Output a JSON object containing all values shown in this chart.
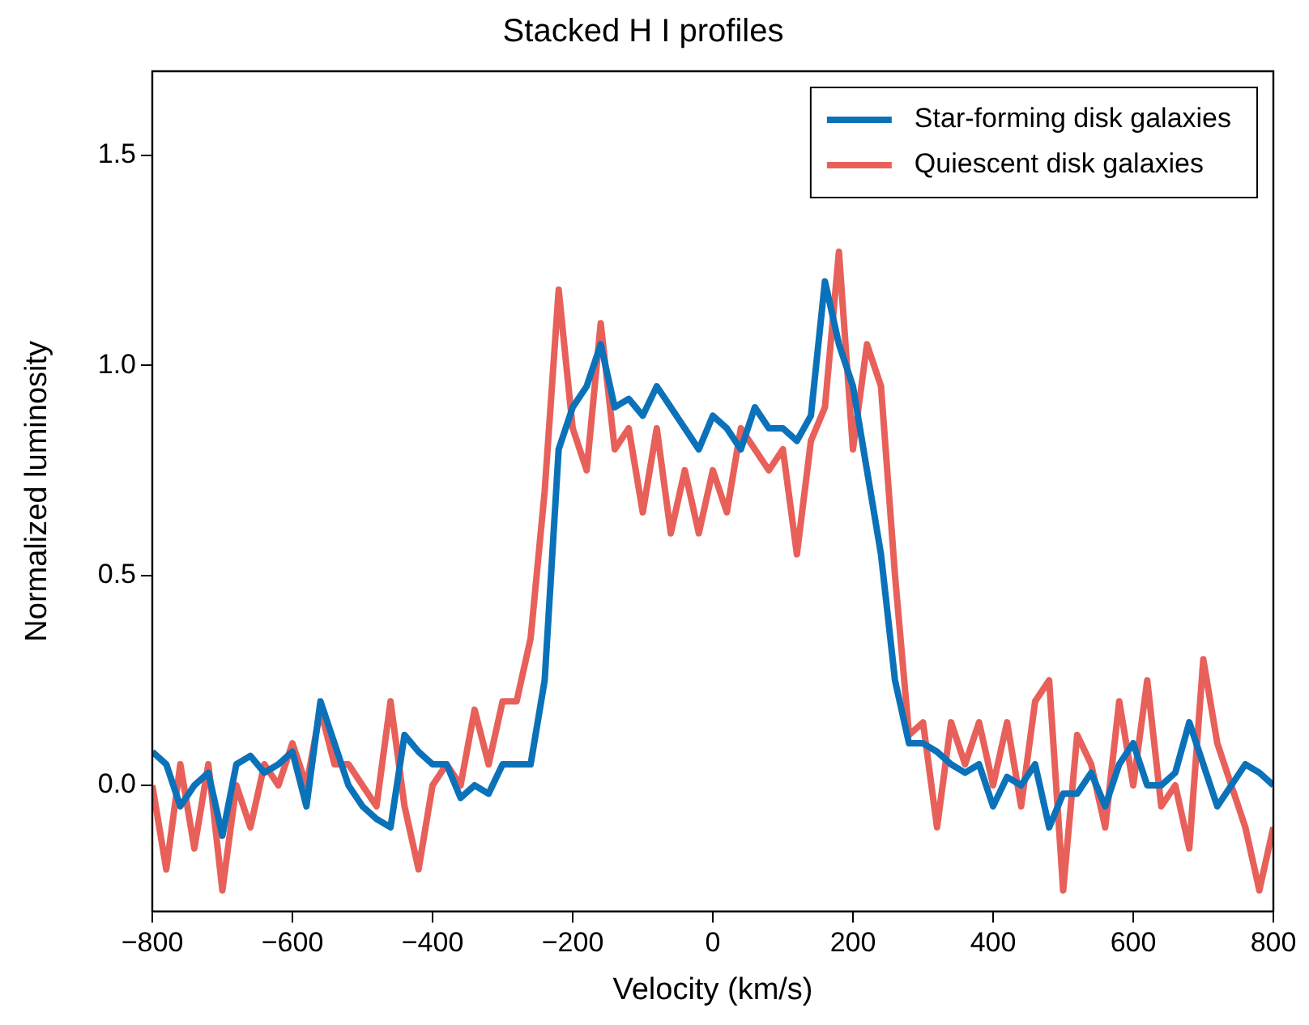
{
  "chart_data": {
    "type": "line",
    "title": "Stacked H I profiles",
    "xlabel": "Velocity (km/s)",
    "ylabel": "Normalized luminosity",
    "x": [
      -800,
      -780,
      -760,
      -740,
      -720,
      -700,
      -680,
      -660,
      -640,
      -620,
      -600,
      -580,
      -560,
      -540,
      -520,
      -500,
      -480,
      -460,
      -440,
      -420,
      -400,
      -380,
      -360,
      -340,
      -320,
      -300,
      -280,
      -260,
      -240,
      -220,
      -200,
      -180,
      -160,
      -140,
      -120,
      -100,
      -80,
      -60,
      -40,
      -20,
      0,
      20,
      40,
      60,
      80,
      100,
      120,
      140,
      160,
      180,
      200,
      220,
      240,
      260,
      280,
      300,
      320,
      340,
      360,
      380,
      400,
      420,
      440,
      460,
      480,
      500,
      520,
      540,
      560,
      580,
      600,
      620,
      640,
      660,
      680,
      700,
      720,
      740,
      760,
      780,
      800
    ],
    "series": [
      {
        "name": "Star-forming disk galaxies",
        "color": "#0b72ba",
        "values": [
          0.08,
          0.05,
          -0.05,
          0.0,
          0.03,
          -0.12,
          0.05,
          0.07,
          0.03,
          0.05,
          0.08,
          -0.05,
          0.2,
          0.1,
          0.0,
          -0.05,
          -0.08,
          -0.1,
          0.12,
          0.08,
          0.05,
          0.05,
          -0.03,
          0.0,
          -0.02,
          0.05,
          0.05,
          0.05,
          0.25,
          0.8,
          0.9,
          0.95,
          1.05,
          0.9,
          0.92,
          0.88,
          0.95,
          0.9,
          0.85,
          0.8,
          0.88,
          0.85,
          0.8,
          0.9,
          0.85,
          0.85,
          0.82,
          0.88,
          1.2,
          1.05,
          0.95,
          0.75,
          0.55,
          0.25,
          0.1,
          0.1,
          0.08,
          0.05,
          0.03,
          0.05,
          -0.05,
          0.02,
          0.0,
          0.05,
          -0.1,
          -0.02,
          -0.02,
          0.03,
          -0.05,
          0.05,
          0.1,
          0.0,
          0.0,
          0.03,
          0.15,
          0.05,
          -0.05,
          0.0,
          0.05,
          0.03,
          0.0
        ]
      },
      {
        "name": "Quiescent disk galaxies",
        "color": "#e8605a",
        "values": [
          0.0,
          -0.2,
          0.05,
          -0.15,
          0.05,
          -0.25,
          0.0,
          -0.1,
          0.05,
          0.0,
          0.1,
          0.0,
          0.18,
          0.05,
          0.05,
          0.0,
          -0.05,
          0.2,
          -0.05,
          -0.2,
          0.0,
          0.05,
          0.0,
          0.18,
          0.05,
          0.2,
          0.2,
          0.35,
          0.7,
          1.18,
          0.85,
          0.75,
          1.1,
          0.8,
          0.85,
          0.65,
          0.85,
          0.6,
          0.75,
          0.6,
          0.75,
          0.65,
          0.85,
          0.8,
          0.75,
          0.8,
          0.55,
          0.82,
          0.9,
          1.27,
          0.8,
          1.05,
          0.95,
          0.5,
          0.12,
          0.15,
          -0.1,
          0.15,
          0.05,
          0.15,
          0.0,
          0.15,
          -0.05,
          0.2,
          0.25,
          -0.25,
          0.12,
          0.05,
          -0.1,
          0.2,
          0.0,
          0.25,
          -0.05,
          0.0,
          -0.15,
          0.3,
          0.1,
          0.0,
          -0.1,
          -0.25,
          -0.1
        ]
      }
    ],
    "xlim": [
      -800,
      800
    ],
    "ylim": [
      -0.3,
      1.7
    ],
    "xticks": [
      {
        "value": -800,
        "label": "−800"
      },
      {
        "value": -600,
        "label": "−600"
      },
      {
        "value": -400,
        "label": "−400"
      },
      {
        "value": -200,
        "label": "−200"
      },
      0,
      200,
      400,
      600,
      800
    ],
    "yticks": [
      {
        "value": 0,
        "label": "0.0"
      },
      {
        "value": 0.5,
        "label": "0.5"
      },
      {
        "value": 1,
        "label": "1.0"
      },
      {
        "value": 1.5,
        "label": "1.5"
      }
    ],
    "grid": false,
    "legend": "top right",
    "marker": "none",
    "line_style": "solid"
  }
}
